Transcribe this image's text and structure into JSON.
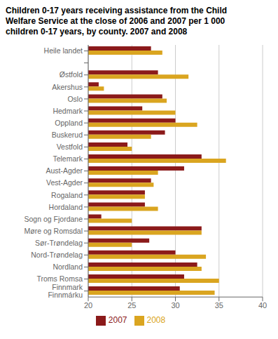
{
  "chart_data": {
    "type": "bar",
    "orientation": "horizontal",
    "title": "Children 0-17 years receiving assistance from the Child\nWelfare Service at the close of 2006 and 2007 per 1 000\nchildren 0-17 years, by county. 2007 and 2008",
    "categories": [
      "Heile landet",
      null,
      "Østfold",
      "Akershus",
      "Oslo",
      "Hedmark",
      "Oppland",
      "Buskerud",
      "Vestfold",
      "Telemark",
      "Aust-Agder",
      "Vest-Agder",
      "Rogaland",
      "Hordaland",
      "Sogn og Fjordane",
      "Møre og Romsdal",
      "Sør-Trøndelag",
      "Nord-Trøndelag",
      "Nordland",
      "Troms Romsa",
      "Finnmark Finnmárku"
    ],
    "series": [
      {
        "name": "2007",
        "color": "#8B1A1A",
        "values": [
          27.2,
          null,
          28.0,
          21.2,
          28.5,
          26.2,
          30.0,
          28.8,
          24.5,
          33.0,
          31.0,
          27.2,
          26.5,
          26.5,
          21.5,
          33.0,
          27.0,
          30.0,
          32.5,
          31.0,
          30.5
        ]
      },
      {
        "name": "2008",
        "color": "#DAA520",
        "values": [
          28.5,
          null,
          31.5,
          21.8,
          29.0,
          30.0,
          32.5,
          27.2,
          25.0,
          35.8,
          28.0,
          27.5,
          26.5,
          28.0,
          25.0,
          33.0,
          25.0,
          33.5,
          33.0,
          35.0,
          34.5
        ]
      }
    ],
    "xlim": [
      20,
      40
    ],
    "xticks": [
      20,
      25,
      30,
      35,
      40
    ],
    "grid": true,
    "legend": "bottom"
  }
}
